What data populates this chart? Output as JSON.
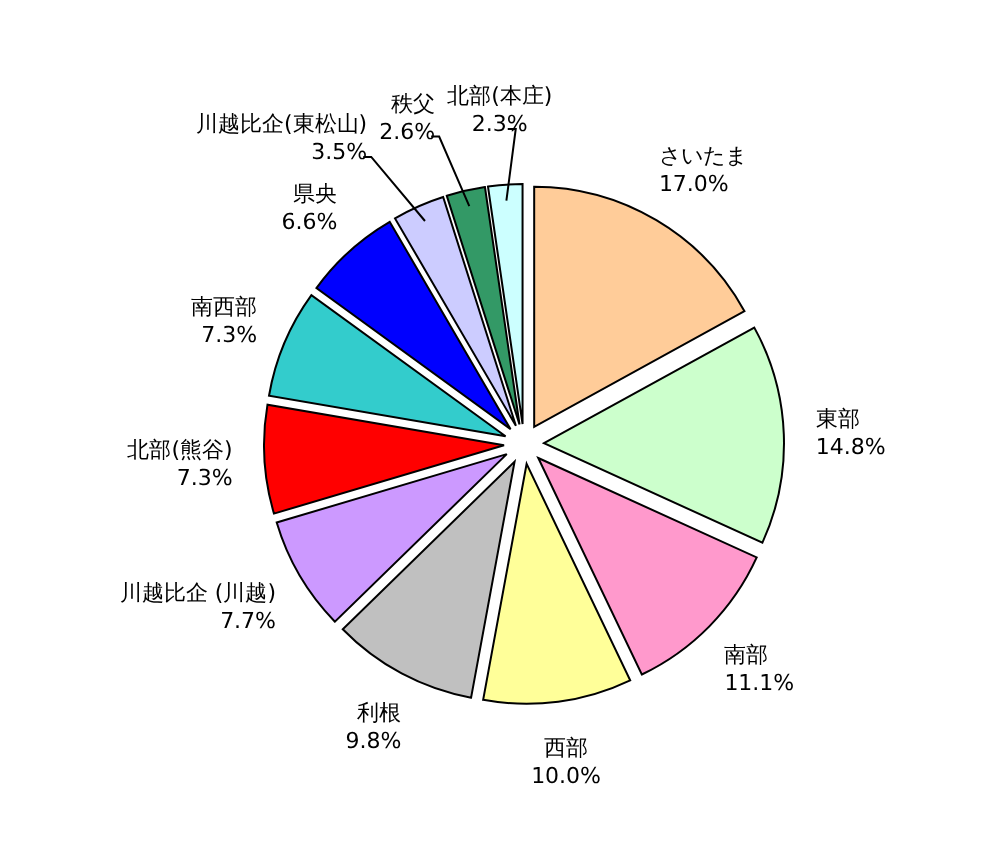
{
  "chart_data": {
    "type": "pie",
    "categories": [
      "さいたま",
      "東部",
      "南部",
      "西部",
      "利根",
      "川越比企 (川越)",
      "北部(熊谷)",
      "南西部",
      "県央",
      "川越比企(東松山)",
      "秩父",
      "北部(本庄)"
    ],
    "values": [
      17.0,
      14.8,
      11.1,
      10.0,
      9.8,
      7.7,
      7.3,
      7.3,
      6.6,
      3.5,
      2.6,
      2.3
    ],
    "value_labels": [
      "17.0%",
      "14.8%",
      "11.1%",
      "10.0%",
      "9.8%",
      "7.7%",
      "7.3%",
      "7.3%",
      "6.6%",
      "3.5%",
      "2.6%",
      "2.3%"
    ],
    "colors": [
      "#ffcc99",
      "#ccffcc",
      "#ff99cc",
      "#ffff99",
      "#c0c0c0",
      "#cc99ff",
      "#ff0000",
      "#33cccc",
      "#0000ff",
      "#ccccff",
      "#339966",
      "#ccffff"
    ]
  }
}
